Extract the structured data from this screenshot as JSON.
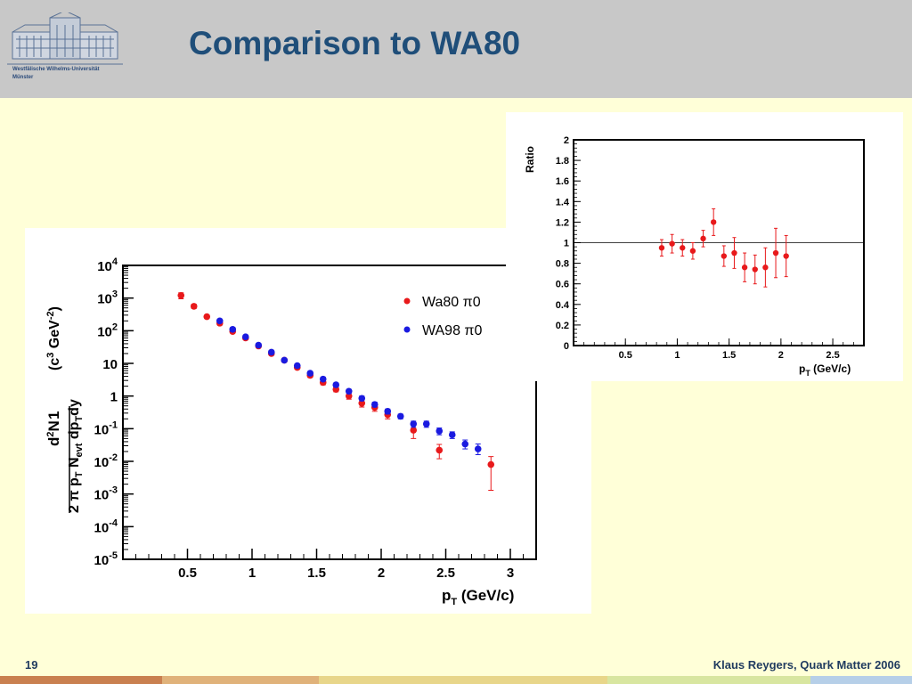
{
  "header": {
    "title": "Comparison to WA80",
    "logo_text_line1": "Westfälische Wilhelms-Universität",
    "logo_text_line2": "Münster"
  },
  "footer": {
    "page_number": "19",
    "author": "Klaus Reygers, Quark Matter 2006"
  },
  "colors": {
    "title": "#1f4e79",
    "background": "#ffffd8",
    "header": "#c8c8c8",
    "wa80": "#e8191b",
    "wa98": "#1a1ae0",
    "bar": [
      "#c98050",
      "#e0b27a",
      "#e8d68a",
      "#d8e6a0",
      "#b6cfe8"
    ]
  },
  "chart_data": [
    {
      "type": "scatter",
      "title": "",
      "xlabel": "pT (GeV/c)",
      "ylabel": "1/(2π pT Nevt) d2N/dpTdy (c3 GeV-2)",
      "xlim": [
        0,
        3.2
      ],
      "ylim": [
        1e-05,
        10000.0
      ],
      "y_scale": "log",
      "x_ticks": [
        "0.5",
        "1",
        "1.5",
        "2",
        "2.5",
        "3"
      ],
      "y_ticks": [
        "10^4",
        "10^3",
        "10^2",
        "10",
        "1",
        "10^-1",
        "10^-2",
        "10^-3",
        "10^-4",
        "10^-5"
      ],
      "legend_position": "top-right",
      "series": [
        {
          "name": "Wa80 π0",
          "color": "#e8191b",
          "x": [
            0.45,
            0.55,
            0.65,
            0.75,
            0.85,
            0.95,
            1.05,
            1.15,
            1.25,
            1.35,
            1.45,
            1.55,
            1.65,
            1.75,
            1.85,
            1.95,
            2.05,
            2.25,
            2.45,
            2.85
          ],
          "y": [
            1200,
            560,
            270,
            170,
            95,
            60,
            34,
            20,
            12.5,
            7.5,
            4.3,
            2.6,
            1.6,
            1.0,
            0.6,
            0.45,
            0.27,
            0.09,
            0.022,
            0.008
          ],
          "err_lo": [
            950,
            480,
            240,
            150,
            85,
            55,
            31,
            18,
            11,
            6.6,
            3.7,
            2.2,
            1.35,
            0.8,
            0.46,
            0.34,
            0.2,
            0.05,
            0.012,
            0.0013
          ],
          "err_hi": [
            1450,
            650,
            300,
            190,
            105,
            66,
            38,
            22,
            14,
            8.5,
            5.0,
            3.0,
            1.9,
            1.25,
            0.78,
            0.58,
            0.34,
            0.14,
            0.033,
            0.014
          ]
        },
        {
          "name": "WA98 π0",
          "color": "#1a1ae0",
          "x": [
            0.75,
            0.85,
            0.95,
            1.05,
            1.15,
            1.25,
            1.35,
            1.45,
            1.55,
            1.65,
            1.75,
            1.85,
            1.95,
            2.05,
            2.15,
            2.25,
            2.35,
            2.45,
            2.55,
            2.65,
            2.75
          ],
          "y": [
            200,
            110,
            65,
            36,
            22,
            12.5,
            8.5,
            5.0,
            3.3,
            2.2,
            1.4,
            0.85,
            0.55,
            0.34,
            0.24,
            0.14,
            0.14,
            0.085,
            0.065,
            0.034,
            0.024
          ],
          "err_lo": [
            175,
            95,
            57,
            31,
            19,
            11,
            7.4,
            4.3,
            2.85,
            1.9,
            1.2,
            0.72,
            0.46,
            0.28,
            0.2,
            0.11,
            0.11,
            0.065,
            0.05,
            0.024,
            0.016
          ],
          "err_hi": [
            225,
            125,
            73,
            41,
            25,
            14,
            9.6,
            5.7,
            3.8,
            2.5,
            1.6,
            1.0,
            0.65,
            0.4,
            0.28,
            0.17,
            0.17,
            0.105,
            0.08,
            0.045,
            0.034
          ]
        }
      ]
    },
    {
      "type": "scatter",
      "title": "",
      "xlabel": "pT (GeV/c)",
      "ylabel": "Ratio",
      "xlim": [
        0,
        2.8
      ],
      "ylim": [
        0,
        2
      ],
      "x_ticks": [
        "0.5",
        "1",
        "1.5",
        "2",
        "2.5"
      ],
      "y_ticks": [
        "0",
        "0.2",
        "0.4",
        "0.6",
        "0.8",
        "1",
        "1.2",
        "1.4",
        "1.6",
        "1.8",
        "2"
      ],
      "reference_line": 1,
      "series": [
        {
          "name": "",
          "color": "#e8191b",
          "x": [
            0.85,
            0.95,
            1.05,
            1.15,
            1.25,
            1.35,
            1.45,
            1.55,
            1.65,
            1.75,
            1.85,
            1.95,
            2.05
          ],
          "y": [
            0.95,
            0.99,
            0.95,
            0.92,
            1.04,
            1.2,
            0.87,
            0.9,
            0.76,
            0.74,
            0.76,
            0.9,
            0.87
          ],
          "err": [
            0.08,
            0.09,
            0.08,
            0.08,
            0.08,
            0.13,
            0.1,
            0.15,
            0.14,
            0.14,
            0.19,
            0.24,
            0.2
          ]
        }
      ]
    }
  ]
}
